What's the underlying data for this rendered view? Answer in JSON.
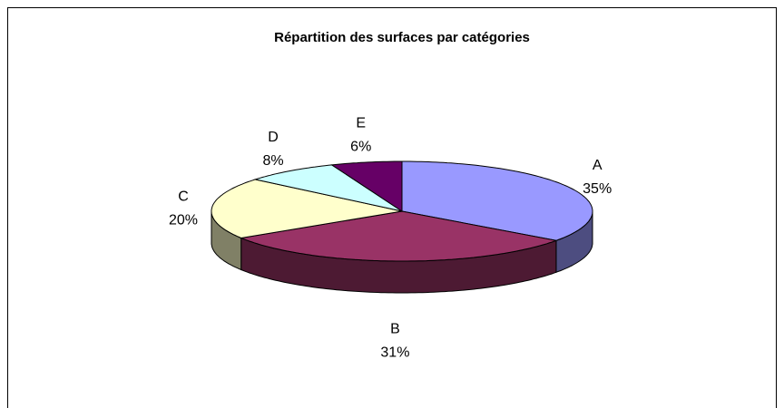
{
  "chart_data": {
    "type": "pie",
    "title": "Répartition des surfaces par catégories",
    "categories": [
      "A",
      "B",
      "C",
      "D",
      "E"
    ],
    "values": [
      35,
      31,
      20,
      8,
      6
    ],
    "value_labels": [
      "35%",
      "31%",
      "20%",
      "8%",
      "6%"
    ],
    "colors": [
      "#9999ff",
      "#993366",
      "#ffffcc",
      "#ccffff",
      "#660066"
    ]
  }
}
